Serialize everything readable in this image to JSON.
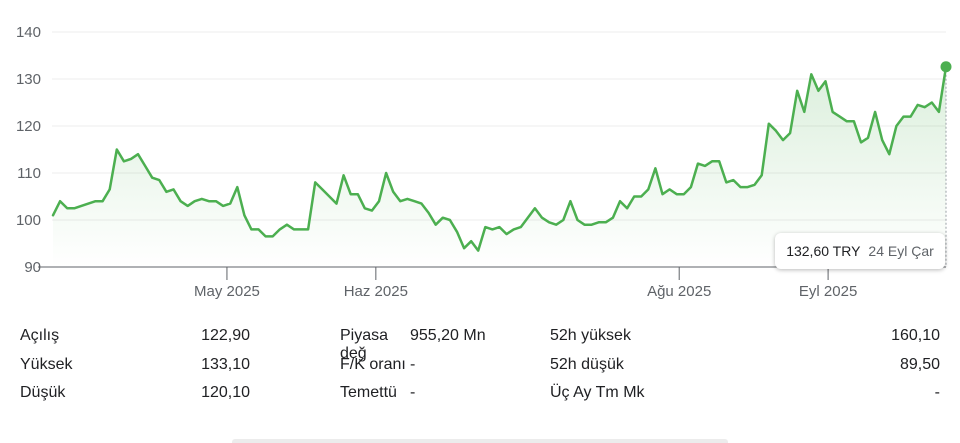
{
  "chart_data": {
    "type": "line",
    "series": [
      {
        "values": [
          101,
          104,
          102.5,
          102.5,
          103,
          103.5,
          104,
          104,
          106.5,
          115,
          112.5,
          113,
          114,
          111.5,
          109,
          108.5,
          106,
          106.5,
          104,
          103,
          104,
          104.5,
          104,
          104,
          103,
          103.5,
          107,
          101,
          98,
          98,
          96.5,
          96.5,
          98,
          99,
          98,
          98,
          98,
          108,
          106.5,
          105,
          103.5,
          109.5,
          105.5,
          105.5,
          102.5,
          102,
          104,
          110,
          106,
          104,
          104.5,
          104,
          103.5,
          101.5,
          99,
          100.5,
          100,
          97.5,
          94,
          95.5,
          93.5,
          98.5,
          98,
          98.5,
          97,
          98,
          98.5,
          100.5,
          102.5,
          100.5,
          99.5,
          99,
          100,
          104,
          100,
          99,
          99,
          99.5,
          99.5,
          100.5,
          104,
          102.5,
          105,
          105,
          106.5,
          111,
          105.5,
          106.5,
          105.5,
          105.5,
          107,
          112,
          111.5,
          112.5,
          112.5,
          108,
          108.5,
          107,
          107,
          107.5,
          109.5,
          120.5,
          119,
          117,
          118.5,
          127.5,
          123,
          131,
          127.5,
          129.5,
          123,
          122,
          121,
          121,
          116.5,
          117.5,
          123,
          117,
          114,
          120,
          122,
          122,
          124.5,
          124,
          125,
          123,
          132.6
        ]
      }
    ],
    "ylim": [
      90,
      140
    ],
    "y_ticks": [
      "90",
      "100",
      "110",
      "120",
      "130",
      "140"
    ],
    "x_ticks": [
      "May 2025",
      "Haz 2025",
      "Ağu 2025",
      "Eyl 2025"
    ],
    "x_tick_positions": [
      0.2364,
      0.3915,
      0.7075,
      0.8626
    ],
    "grid": true,
    "line_color": "#4CAF50"
  },
  "tooltip": {
    "price": "132,60 TRY",
    "date": "24 Eyl Çar"
  },
  "stats": [
    [
      {
        "label": "Açılış",
        "value": "122,90"
      },
      {
        "label": "Piyasa değ",
        "value": "955,20 Mn"
      },
      {
        "label": "52h yüksek",
        "value": "160,10"
      }
    ],
    [
      {
        "label": "Yüksek",
        "value": "133,10"
      },
      {
        "label": "F/K oranı",
        "value": "-"
      },
      {
        "label": "52h düşük",
        "value": "89,50"
      }
    ],
    [
      {
        "label": "Düşük",
        "value": "120,10"
      },
      {
        "label": "Temettü",
        "value": "-"
      },
      {
        "label": "Üç Ay Tm Mk",
        "value": "-"
      }
    ]
  ]
}
